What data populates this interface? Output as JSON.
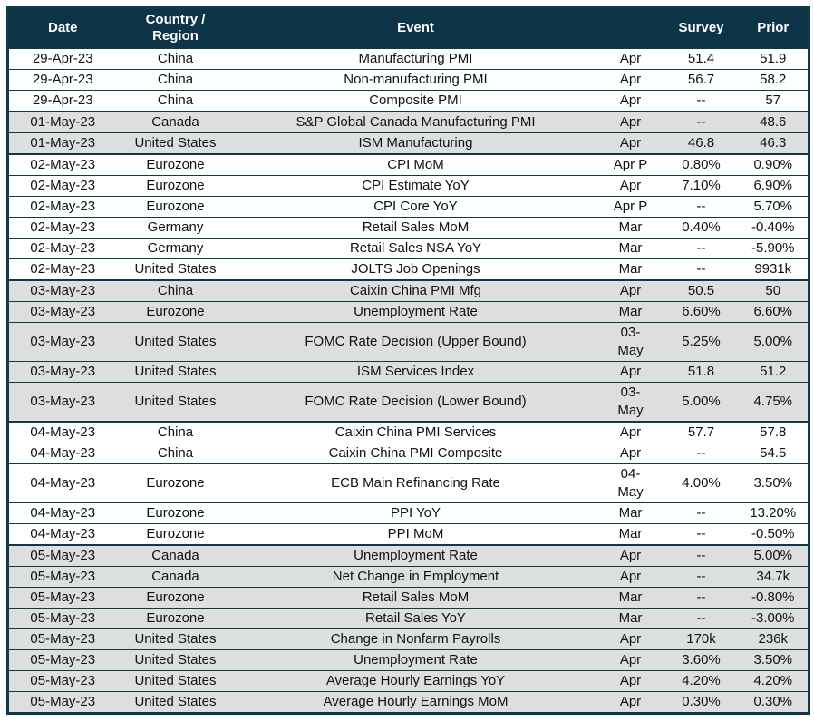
{
  "colors": {
    "header_bg": "#0d3447",
    "header_text": "#ffffff",
    "row_shaded_bg": "#dedede",
    "row_plain_bg": "#ffffff",
    "border": "#10374a",
    "body_text": "#111111"
  },
  "table": {
    "columns": [
      {
        "key": "date",
        "label": "Date"
      },
      {
        "key": "region",
        "label": "Country /\nRegion"
      },
      {
        "key": "event",
        "label": "Event"
      },
      {
        "key": "period",
        "label": ""
      },
      {
        "key": "survey",
        "label": "Survey"
      },
      {
        "key": "prior",
        "label": "Prior"
      }
    ],
    "rows": [
      {
        "date": "29-Apr-23",
        "region": "China",
        "event": "Manufacturing PMI",
        "period": "Apr",
        "survey": "51.4",
        "prior": "51.9"
      },
      {
        "date": "29-Apr-23",
        "region": "China",
        "event": "Non-manufacturing PMI",
        "period": "Apr",
        "survey": "56.7",
        "prior": "58.2"
      },
      {
        "date": "29-Apr-23",
        "region": "China",
        "event": "Composite PMI",
        "period": "Apr",
        "survey": "--",
        "prior": "57"
      },
      {
        "date": "01-May-23",
        "region": "Canada",
        "event": "S&P Global Canada Manufacturing PMI",
        "period": "Apr",
        "survey": "--",
        "prior": "48.6"
      },
      {
        "date": "01-May-23",
        "region": "United States",
        "event": "ISM Manufacturing",
        "period": "Apr",
        "survey": "46.8",
        "prior": "46.3"
      },
      {
        "date": "02-May-23",
        "region": "Eurozone",
        "event": "CPI MoM",
        "period": "Apr P",
        "survey": "0.80%",
        "prior": "0.90%"
      },
      {
        "date": "02-May-23",
        "region": "Eurozone",
        "event": "CPI Estimate YoY",
        "period": "Apr",
        "survey": "7.10%",
        "prior": "6.90%"
      },
      {
        "date": "02-May-23",
        "region": "Eurozone",
        "event": "CPI Core YoY",
        "period": "Apr P",
        "survey": "--",
        "prior": "5.70%"
      },
      {
        "date": "02-May-23",
        "region": "Germany",
        "event": "Retail Sales MoM",
        "period": "Mar",
        "survey": "0.40%",
        "prior": "-0.40%"
      },
      {
        "date": "02-May-23",
        "region": "Germany",
        "event": "Retail Sales NSA YoY",
        "period": "Mar",
        "survey": "--",
        "prior": "-5.90%"
      },
      {
        "date": "02-May-23",
        "region": "United States",
        "event": "JOLTS Job Openings",
        "period": "Mar",
        "survey": "--",
        "prior": "9931k"
      },
      {
        "date": "03-May-23",
        "region": "China",
        "event": "Caixin China PMI Mfg",
        "period": "Apr",
        "survey": "50.5",
        "prior": "50"
      },
      {
        "date": "03-May-23",
        "region": "Eurozone",
        "event": "Unemployment Rate",
        "period": "Mar",
        "survey": "6.60%",
        "prior": "6.60%"
      },
      {
        "date": "03-May-23",
        "region": "United States",
        "event": "FOMC Rate Decision (Upper Bound)",
        "period": "03-\nMay",
        "survey": "5.25%",
        "prior": "5.00%"
      },
      {
        "date": "03-May-23",
        "region": "United States",
        "event": "ISM Services Index",
        "period": "Apr",
        "survey": "51.8",
        "prior": "51.2"
      },
      {
        "date": "03-May-23",
        "region": "United States",
        "event": "FOMC Rate Decision (Lower Bound)",
        "period": "03-\nMay",
        "survey": "5.00%",
        "prior": "4.75%"
      },
      {
        "date": "04-May-23",
        "region": "China",
        "event": "Caixin China PMI Services",
        "period": "Apr",
        "survey": "57.7",
        "prior": "57.8"
      },
      {
        "date": "04-May-23",
        "region": "China",
        "event": "Caixin China PMI Composite",
        "period": "Apr",
        "survey": "--",
        "prior": "54.5"
      },
      {
        "date": "04-May-23",
        "region": "Eurozone",
        "event": "ECB Main Refinancing Rate",
        "period": "04-\nMay",
        "survey": "4.00%",
        "prior": "3.50%"
      },
      {
        "date": "04-May-23",
        "region": "Eurozone",
        "event": "PPI YoY",
        "period": "Mar",
        "survey": "--",
        "prior": "13.20%"
      },
      {
        "date": "04-May-23",
        "region": "Eurozone",
        "event": "PPI MoM",
        "period": "Mar",
        "survey": "--",
        "prior": "-0.50%"
      },
      {
        "date": "05-May-23",
        "region": "Canada",
        "event": "Unemployment Rate",
        "period": "Apr",
        "survey": "--",
        "prior": "5.00%"
      },
      {
        "date": "05-May-23",
        "region": "Canada",
        "event": "Net Change in Employment",
        "period": "Apr",
        "survey": "--",
        "prior": "34.7k"
      },
      {
        "date": "05-May-23",
        "region": "Eurozone",
        "event": "Retail Sales MoM",
        "period": "Mar",
        "survey": "--",
        "prior": "-0.80%"
      },
      {
        "date": "05-May-23",
        "region": "Eurozone",
        "event": "Retail Sales YoY",
        "period": "Mar",
        "survey": "--",
        "prior": "-3.00%"
      },
      {
        "date": "05-May-23",
        "region": "United States",
        "event": "Change in Nonfarm Payrolls",
        "period": "Apr",
        "survey": "170k",
        "prior": "236k"
      },
      {
        "date": "05-May-23",
        "region": "United States",
        "event": "Unemployment Rate",
        "period": "Apr",
        "survey": "3.60%",
        "prior": "3.50%"
      },
      {
        "date": "05-May-23",
        "region": "United States",
        "event": "Average Hourly Earnings YoY",
        "period": "Apr",
        "survey": "4.20%",
        "prior": "4.20%"
      },
      {
        "date": "05-May-23",
        "region": "United States",
        "event": "Average Hourly Earnings MoM",
        "period": "Apr",
        "survey": "0.30%",
        "prior": "0.30%"
      }
    ]
  }
}
